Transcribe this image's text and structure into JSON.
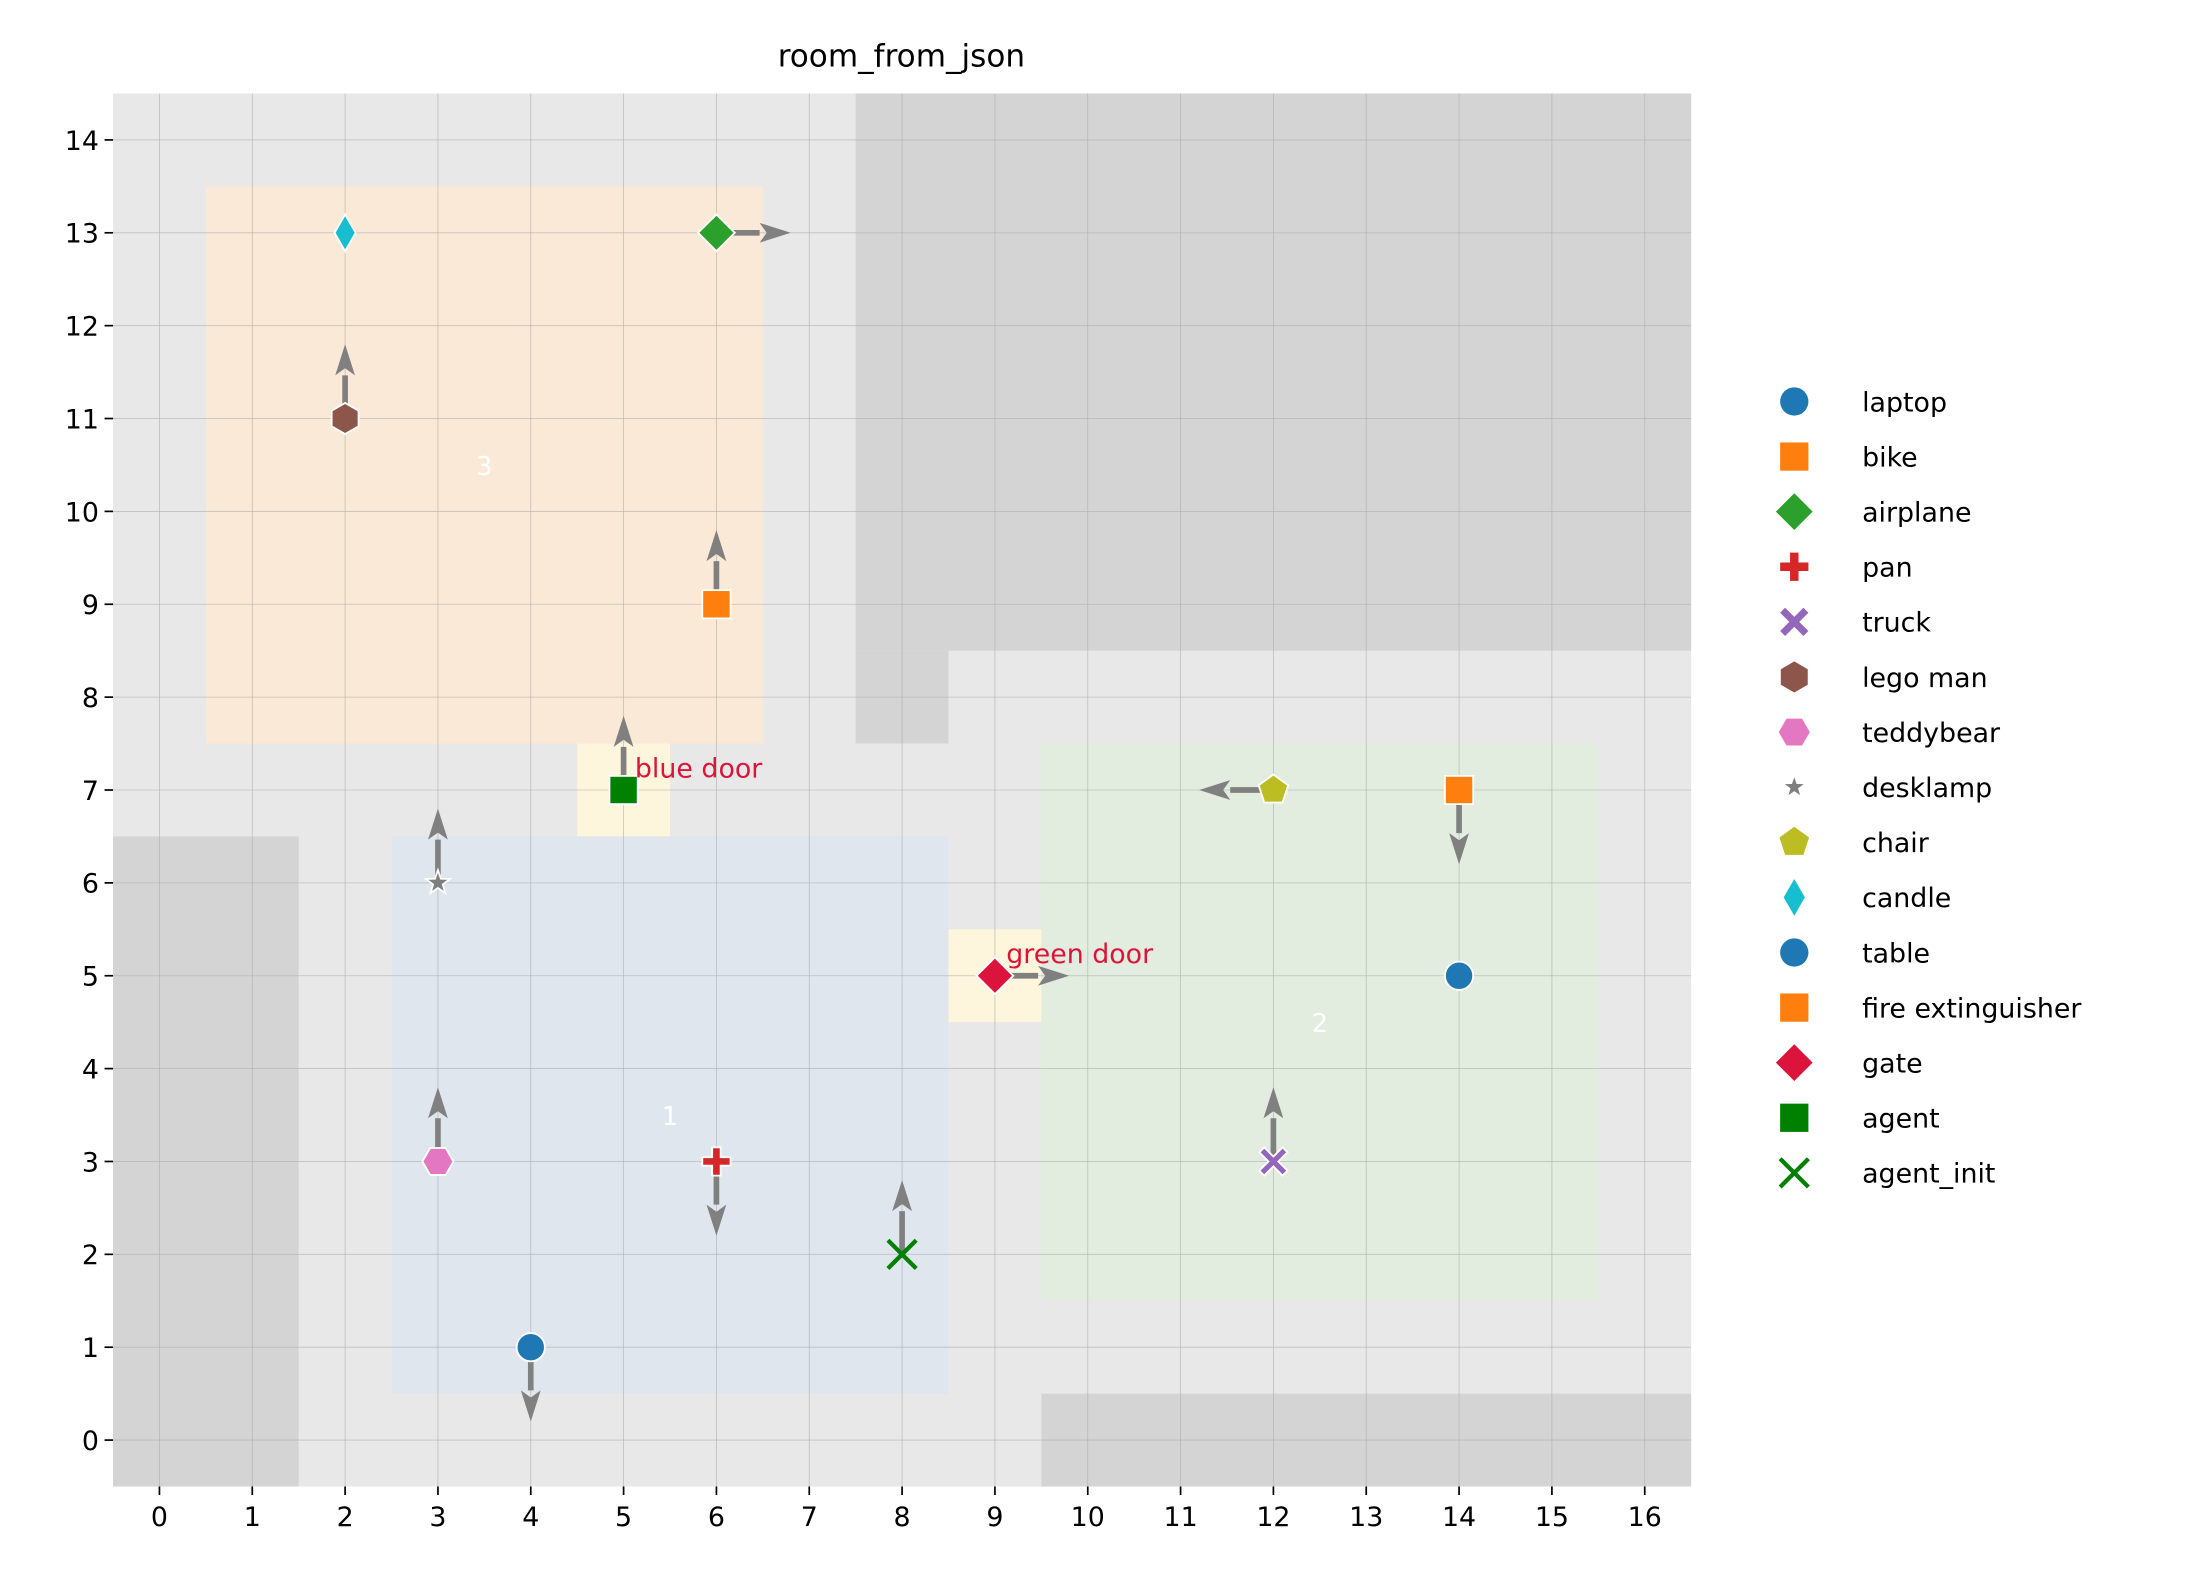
{
  "chart_data": {
    "type": "scatter",
    "title": "room_from_json",
    "xlabel": "",
    "ylabel": "",
    "xlim": [
      -0.5,
      16.5
    ],
    "ylim": [
      -0.5,
      14.5
    ],
    "xticks": [
      "0",
      "1",
      "2",
      "3",
      "4",
      "5",
      "6",
      "7",
      "8",
      "9",
      "10",
      "11",
      "12",
      "13",
      "14",
      "15",
      "16"
    ],
    "yticks": [
      "0",
      "1",
      "2",
      "3",
      "4",
      "5",
      "6",
      "7",
      "8",
      "9",
      "10",
      "11",
      "12",
      "13",
      "14"
    ],
    "grid": true,
    "legend_position": "right",
    "colors": {
      "background": "#e8e8e8",
      "wall": "#d4d4d4",
      "arrow": "#808080",
      "door_label": "#dc143c"
    },
    "walls": [
      {
        "x": [
          7.5,
          16.5
        ],
        "y": [
          8.5,
          14.5
        ]
      },
      {
        "x": [
          7.5,
          8.5
        ],
        "y": [
          7.5,
          8.5
        ]
      },
      {
        "x": [
          -0.5,
          1.5
        ],
        "y": [
          -0.5,
          6.5
        ]
      },
      {
        "x": [
          9.5,
          16.5
        ],
        "y": [
          -0.5,
          0.5
        ]
      }
    ],
    "rooms": [
      {
        "label": "3",
        "x": [
          0.5,
          6.5
        ],
        "y": [
          7.5,
          13.5
        ],
        "color": "#fbe9d7",
        "label_at": [
          3.5,
          10.5
        ]
      },
      {
        "label": "1",
        "x": [
          2.5,
          8.5
        ],
        "y": [
          0.5,
          6.5
        ],
        "color": "#dfe6ee",
        "label_at": [
          5.5,
          3.5
        ]
      },
      {
        "label": "2",
        "x": [
          9.5,
          15.5
        ],
        "y": [
          1.5,
          7.5
        ],
        "color": "#e2ecdf",
        "label_at": [
          12.5,
          4.5
        ]
      }
    ],
    "doors": [
      {
        "label": "blue door",
        "x": 5,
        "y": 7,
        "color": "#fdf5dc"
      },
      {
        "label": "green door",
        "x": 9,
        "y": 5,
        "color": "#fdf5dc"
      }
    ],
    "series": [
      {
        "name": "laptop",
        "marker": "circle",
        "color": "#1f77b4",
        "points": [
          {
            "x": 4,
            "y": 1,
            "dir": "down"
          }
        ]
      },
      {
        "name": "bike",
        "marker": "square",
        "color": "#ff7f0e",
        "points": [
          {
            "x": 6,
            "y": 9,
            "dir": "up"
          }
        ]
      },
      {
        "name": "airplane",
        "marker": "diamond",
        "color": "#2ca02c",
        "points": [
          {
            "x": 6,
            "y": 13,
            "dir": "right"
          }
        ]
      },
      {
        "name": "pan",
        "marker": "plus",
        "color": "#d62728",
        "points": [
          {
            "x": 6,
            "y": 3,
            "dir": "down"
          }
        ]
      },
      {
        "name": "truck",
        "marker": "xfilled",
        "color": "#9467bd",
        "points": [
          {
            "x": 12,
            "y": 3,
            "dir": "up"
          }
        ]
      },
      {
        "name": "lego man",
        "marker": "hexagon",
        "color": "#8c564b",
        "points": [
          {
            "x": 2,
            "y": 11,
            "dir": "up"
          }
        ]
      },
      {
        "name": "teddybear",
        "marker": "hexagon2",
        "color": "#e377c2",
        "points": [
          {
            "x": 3,
            "y": 3,
            "dir": "up"
          }
        ]
      },
      {
        "name": "desklamp",
        "marker": "star",
        "color": "#7f7f7f",
        "points": [
          {
            "x": 3,
            "y": 6,
            "dir": "up"
          }
        ]
      },
      {
        "name": "chair",
        "marker": "pentagon",
        "color": "#bcbd22",
        "points": [
          {
            "x": 12,
            "y": 7,
            "dir": "left"
          }
        ]
      },
      {
        "name": "candle",
        "marker": "thin_diamond",
        "color": "#17becf",
        "points": [
          {
            "x": 2,
            "y": 13,
            "dir": null
          }
        ]
      },
      {
        "name": "table",
        "marker": "circle",
        "color": "#1f77b4",
        "points": [
          {
            "x": 14,
            "y": 5,
            "dir": null
          }
        ]
      },
      {
        "name": "fire extinguisher",
        "marker": "square",
        "color": "#ff7f0e",
        "points": [
          {
            "x": 14,
            "y": 7,
            "dir": "down"
          }
        ]
      },
      {
        "name": "gate",
        "marker": "diamond",
        "color": "#dc143c",
        "points": [
          {
            "x": 9,
            "y": 5,
            "dir": "right"
          },
          {
            "x": 5,
            "y": 7,
            "dir": null
          }
        ]
      },
      {
        "name": "agent",
        "marker": "square",
        "color": "#008000",
        "points": [
          {
            "x": 5,
            "y": 7,
            "dir": "up"
          }
        ]
      },
      {
        "name": "agent_init",
        "marker": "x",
        "color": "#008000",
        "points": [
          {
            "x": 8,
            "y": 2,
            "dir": "up"
          }
        ]
      }
    ]
  }
}
